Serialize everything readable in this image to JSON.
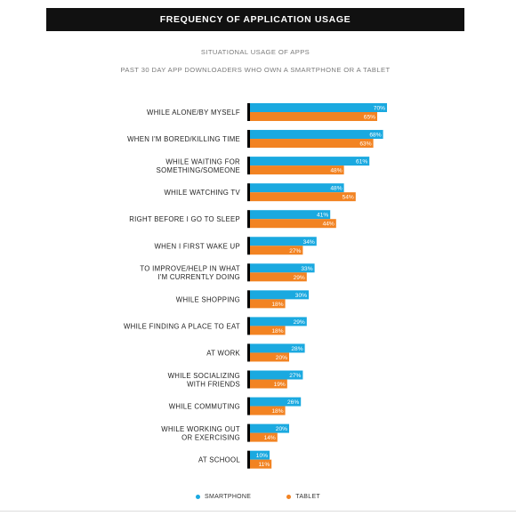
{
  "header": {
    "title": "FREQUENCY OF APPLICATION USAGE"
  },
  "subtitle1": "SITUATIONAL USAGE OF APPS",
  "subtitle2": "PAST 30 DAY APP DOWNLOADERS WHO OWN A SMARTPHONE OR A TABLET",
  "colors": {
    "smartphone": "#1aa9e0",
    "tablet": "#f28322",
    "axis": "#111111"
  },
  "legend": [
    {
      "label": "SMARTPHONE",
      "color": "#1aa9e0"
    },
    {
      "label": "TABLET",
      "color": "#f28322"
    }
  ],
  "chart_data": {
    "type": "bar",
    "orientation": "horizontal",
    "categories": [
      [
        "WHILE ALONE/BY MYSELF"
      ],
      [
        "WHEN I'M BORED/KILLING TIME"
      ],
      [
        "WHILE WAITING FOR",
        "SOMETHING/SOMEONE"
      ],
      [
        "WHILE WATCHING TV"
      ],
      [
        "RIGHT BEFORE I GO TO SLEEP"
      ],
      [
        "WHEN I FIRST WAKE UP"
      ],
      [
        "TO IMPROVE/HELP IN WHAT",
        "I'M CURRENTLY DOING"
      ],
      [
        "WHILE SHOPPING"
      ],
      [
        "WHILE FINDING A PLACE TO EAT"
      ],
      [
        "AT WORK"
      ],
      [
        "WHILE SOCIALIZING",
        "WITH FRIENDS"
      ],
      [
        "WHILE COMMUTING"
      ],
      [
        "WHILE WORKING OUT",
        "OR EXERCISING"
      ],
      [
        "AT SCHOOL"
      ]
    ],
    "series": [
      {
        "name": "SMARTPHONE",
        "values": [
          70,
          68,
          61,
          48,
          41,
          34,
          33,
          30,
          29,
          28,
          27,
          26,
          20,
          10
        ]
      },
      {
        "name": "TABLET",
        "values": [
          65,
          63,
          48,
          54,
          44,
          27,
          29,
          18,
          18,
          20,
          19,
          18,
          14,
          11
        ]
      }
    ],
    "value_suffix": "%",
    "xlim": [
      0,
      100
    ],
    "grid": false,
    "legend_position": "bottom-center"
  }
}
